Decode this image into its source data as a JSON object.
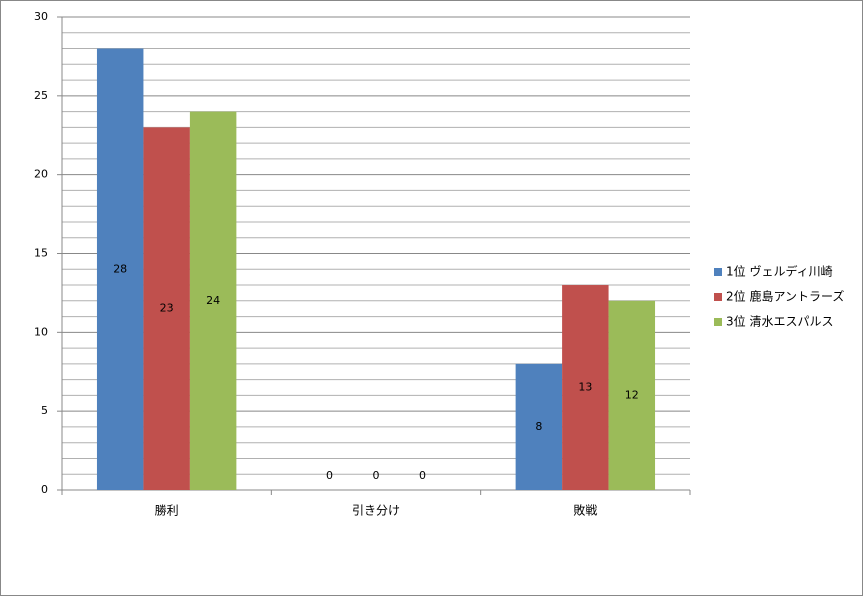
{
  "chart_data": {
    "type": "bar",
    "categories": [
      "勝利",
      "引き分け",
      "敗戦"
    ],
    "series": [
      {
        "name": "1位 ヴェルディ川崎",
        "color": "#4f81bd",
        "values": [
          28,
          0,
          8
        ]
      },
      {
        "name": "2位 鹿島アントラーズ",
        "color": "#c0504d",
        "values": [
          23,
          0,
          13
        ]
      },
      {
        "name": "3位 清水エスパルス",
        "color": "#9bbb59",
        "values": [
          24,
          0,
          12
        ]
      }
    ],
    "ylim": [
      0,
      30
    ],
    "yticks": [
      0,
      5,
      10,
      15,
      20,
      25,
      30
    ],
    "y_minor_ticks": [
      1,
      2,
      3,
      4,
      6,
      7,
      8,
      9,
      11,
      12,
      13,
      14,
      16,
      17,
      18,
      19,
      21,
      22,
      23,
      24,
      26,
      27,
      28,
      29
    ],
    "grid": true,
    "data_labels": true,
    "legend": "right"
  }
}
